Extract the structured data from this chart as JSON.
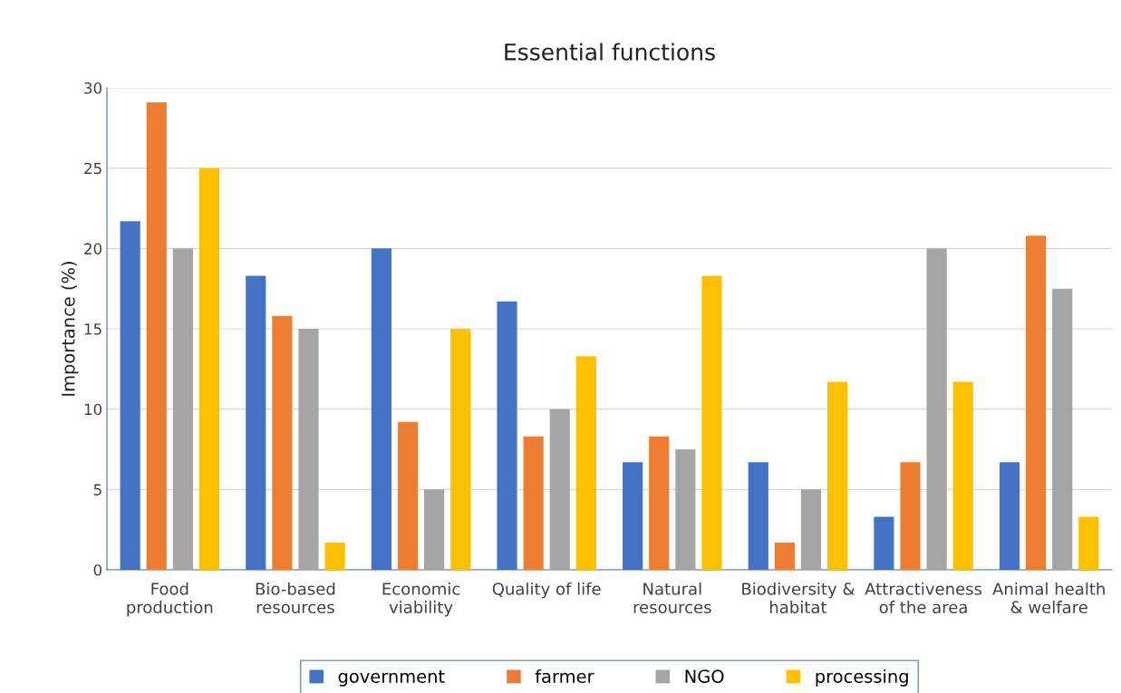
{
  "chart_data": {
    "type": "bar",
    "title": "Essential functions",
    "ylabel": "Importance (%)",
    "categories": [
      "Food\nproduction",
      "Bio-based\nresources",
      "Economic\nviability",
      "Quality of life",
      "Natural\nresources",
      "Biodiversity &\nhabitat",
      "Attractiveness\nof the area",
      "Animal health\n& welfare"
    ],
    "series": [
      {
        "name": "government",
        "color": "#4472c4",
        "values": [
          21.7,
          18.3,
          20.0,
          16.7,
          6.7,
          6.7,
          3.3,
          6.7
        ]
      },
      {
        "name": "farmer",
        "color": "#ed7d31",
        "values": [
          29.1,
          15.8,
          9.2,
          8.3,
          8.3,
          1.7,
          6.7,
          20.8
        ]
      },
      {
        "name": "NGO",
        "color": "#a5a5a5",
        "values": [
          20.0,
          15.0,
          5.0,
          10.0,
          7.5,
          5.0,
          20.0,
          17.5
        ]
      },
      {
        "name": "processing",
        "color": "#ffc000",
        "values": [
          25.0,
          1.7,
          15.0,
          13.3,
          18.3,
          11.7,
          11.7,
          3.3
        ]
      }
    ],
    "ylim": [
      0,
      30
    ],
    "yticks": [
      0,
      5,
      10,
      15,
      20,
      25,
      30
    ],
    "grid": "y",
    "legend": "bottom"
  }
}
